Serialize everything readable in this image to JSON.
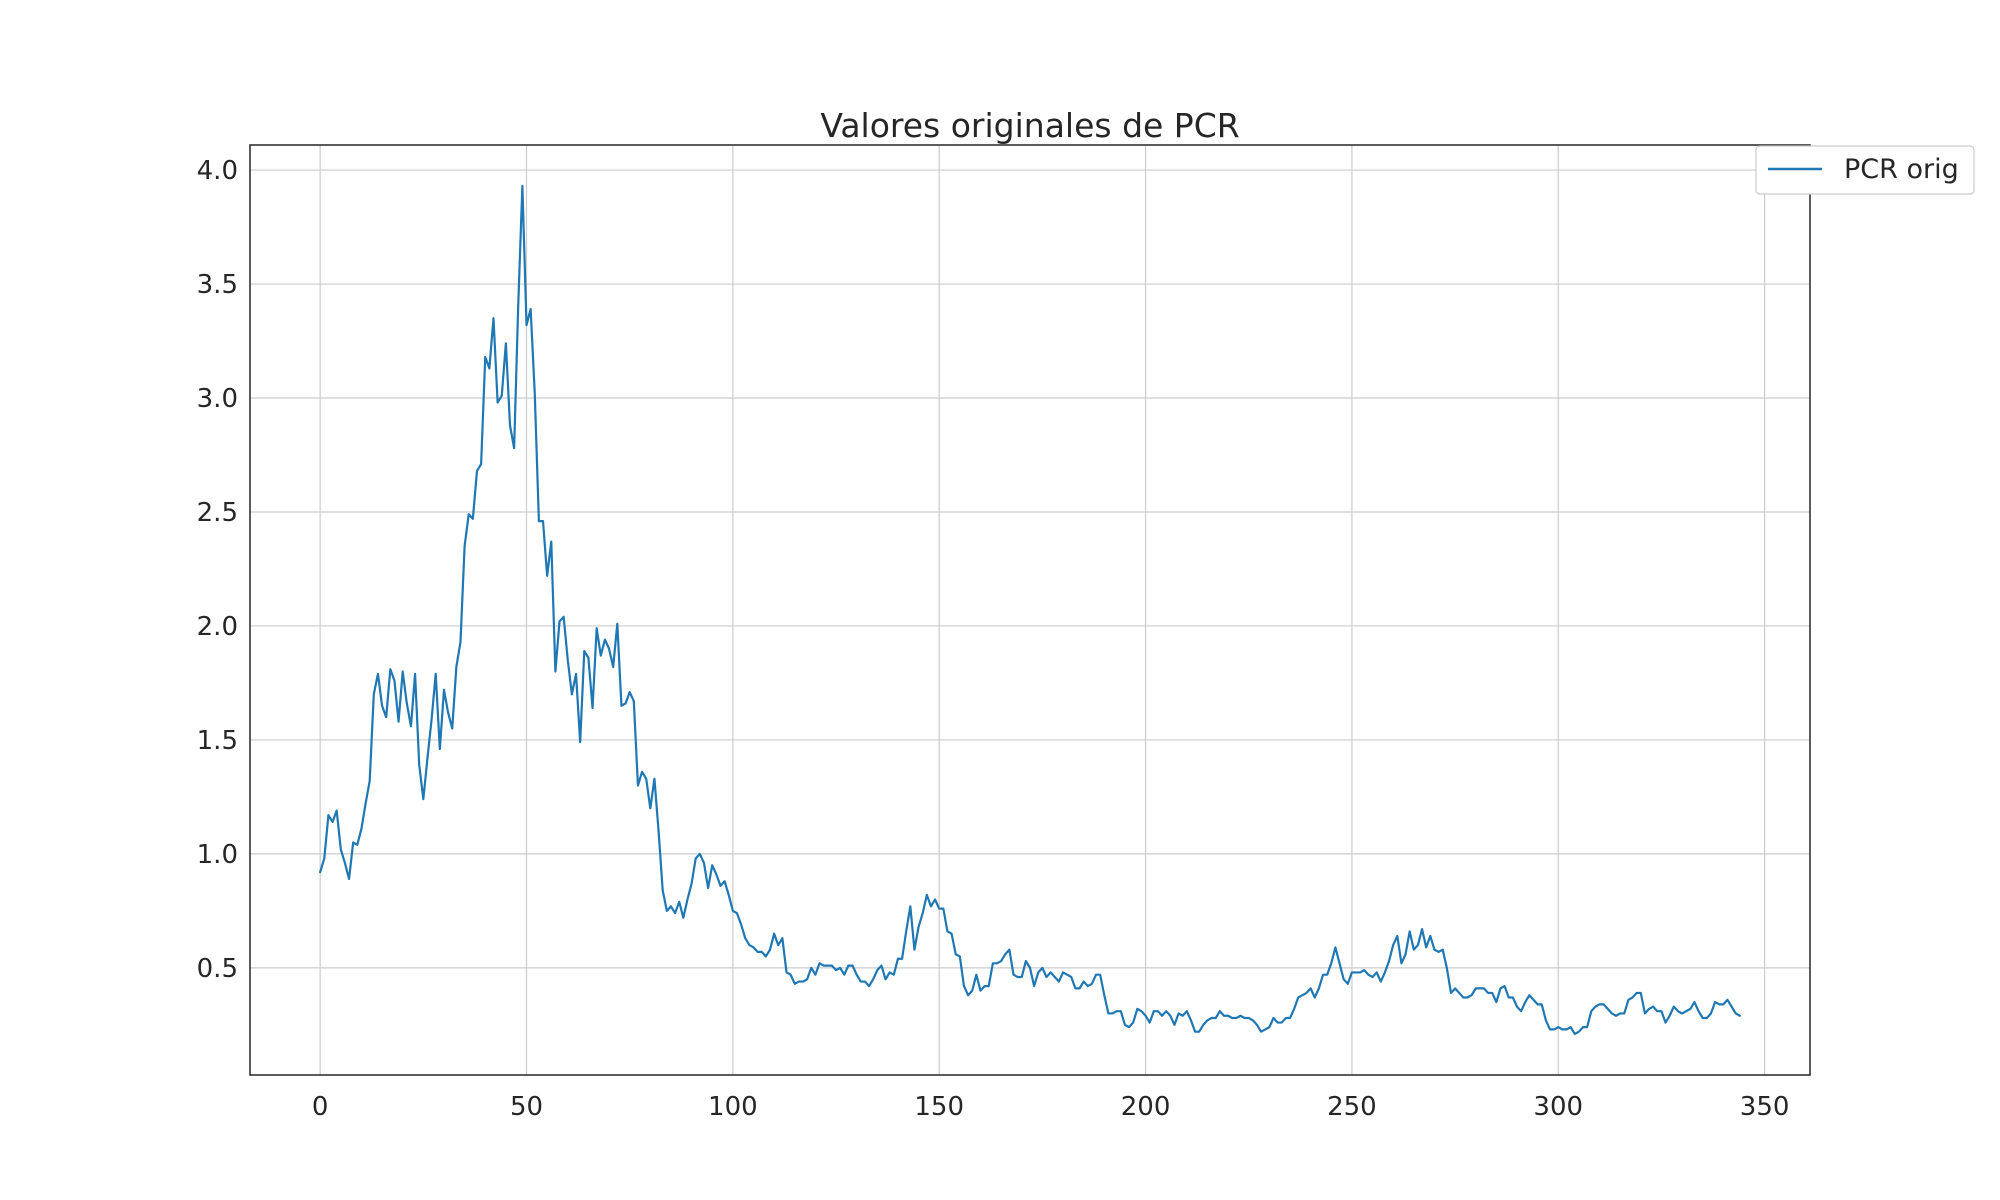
{
  "chart_data": {
    "type": "line",
    "title": "Valores originales de PCR",
    "xlabel": "",
    "ylabel": "",
    "xlim": [
      -17,
      361
    ],
    "ylim": [
      0.03,
      4.11
    ],
    "xticks": [
      0,
      50,
      100,
      150,
      200,
      250,
      300,
      350
    ],
    "yticks": [
      0.5,
      1.0,
      1.5,
      2.0,
      2.5,
      3.0,
      3.5,
      4.0
    ],
    "xtick_labels": [
      "0",
      "50",
      "100",
      "150",
      "200",
      "250",
      "300",
      "350"
    ],
    "ytick_labels": [
      "0.5",
      "1.0",
      "1.5",
      "2.0",
      "2.5",
      "3.0",
      "3.5",
      "4.0"
    ],
    "grid": true,
    "legend_position": "outside top-right",
    "colors": {
      "series": "#1f77b4",
      "grid": "#cccccc",
      "frame": "#262626"
    },
    "series": [
      {
        "name": "PCR orig",
        "x": [
          0,
          1,
          2,
          3,
          4,
          5,
          6,
          7,
          8,
          9,
          10,
          11,
          12,
          13,
          14,
          15,
          16,
          17,
          18,
          19,
          20,
          21,
          22,
          23,
          24,
          25,
          26,
          27,
          28,
          29,
          30,
          31,
          32,
          33,
          34,
          35,
          36,
          37,
          38,
          39,
          40,
          41,
          42,
          43,
          44,
          45,
          46,
          47,
          48,
          49,
          50,
          51,
          52,
          53,
          54,
          55,
          56,
          57,
          58,
          59,
          60,
          61,
          62,
          63,
          64,
          65,
          66,
          67,
          68,
          69,
          70,
          71,
          72,
          73,
          74,
          75,
          76,
          77,
          78,
          79,
          80,
          81,
          82,
          83,
          84,
          85,
          86,
          87,
          88,
          89,
          90,
          91,
          92,
          93,
          94,
          95,
          96,
          97,
          98,
          99,
          100,
          101,
          102,
          103,
          104,
          105,
          106,
          107,
          108,
          109,
          110,
          111,
          112,
          113,
          114,
          115,
          116,
          117,
          118,
          119,
          120,
          121,
          122,
          123,
          124,
          125,
          126,
          127,
          128,
          129,
          130,
          131,
          132,
          133,
          134,
          135,
          136,
          137,
          138,
          139,
          140,
          141,
          142,
          143,
          144,
          145,
          146,
          147,
          148,
          149,
          150,
          151,
          152,
          153,
          154,
          155,
          156,
          157,
          158,
          159,
          160,
          161,
          162,
          163,
          164,
          165,
          166,
          167,
          168,
          169,
          170,
          171,
          172,
          173,
          174,
          175,
          176,
          177,
          178,
          179,
          180,
          181,
          182,
          183,
          184,
          185,
          186,
          187,
          188,
          189,
          190,
          191,
          192,
          193,
          194,
          195,
          196,
          197,
          198,
          199,
          200,
          201,
          202,
          203,
          204,
          205,
          206,
          207,
          208,
          209,
          210,
          211,
          212,
          213,
          214,
          215,
          216,
          217,
          218,
          219,
          220,
          221,
          222,
          223,
          224,
          225,
          226,
          227,
          228,
          229,
          230,
          231,
          232,
          233,
          234,
          235,
          236,
          237,
          238,
          239,
          240,
          241,
          242,
          243,
          244,
          245,
          246,
          247,
          248,
          249,
          250,
          251,
          252,
          253,
          254,
          255,
          256,
          257,
          258,
          259,
          260,
          261,
          262,
          263,
          264,
          265,
          266,
          267,
          268,
          269,
          270,
          271,
          272,
          273,
          274,
          275,
          276,
          277,
          278,
          279,
          280,
          281,
          282,
          283,
          284,
          285,
          286,
          287,
          288,
          289,
          290,
          291,
          292,
          293,
          294,
          295,
          296,
          297,
          298,
          299,
          300,
          301,
          302,
          303,
          304,
          305,
          306,
          307,
          308,
          309,
          310,
          311,
          312,
          313,
          314,
          315,
          316,
          317,
          318,
          319,
          320,
          321,
          322,
          323,
          324,
          325,
          326,
          327,
          328,
          329,
          330,
          331,
          332,
          333,
          334,
          335,
          336,
          337,
          338,
          339,
          340,
          341,
          342,
          343,
          344
        ],
        "values": [
          0.92,
          0.98,
          1.17,
          1.14,
          1.19,
          1.02,
          0.96,
          0.89,
          1.05,
          1.04,
          1.11,
          1.22,
          1.32,
          1.7,
          1.79,
          1.65,
          1.6,
          1.81,
          1.76,
          1.58,
          1.8,
          1.66,
          1.56,
          1.79,
          1.39,
          1.24,
          1.42,
          1.59,
          1.79,
          1.46,
          1.72,
          1.62,
          1.55,
          1.82,
          1.93,
          2.35,
          2.49,
          2.47,
          2.68,
          2.71,
          3.18,
          3.13,
          3.35,
          2.98,
          3.01,
          3.24,
          2.88,
          2.78,
          3.41,
          3.93,
          3.32,
          3.39,
          3.02,
          2.46,
          2.46,
          2.22,
          2.37,
          1.8,
          2.02,
          2.04,
          1.85,
          1.7,
          1.79,
          1.49,
          1.89,
          1.86,
          1.64,
          1.99,
          1.87,
          1.94,
          1.9,
          1.82,
          2.01,
          1.65,
          1.66,
          1.71,
          1.67,
          1.3,
          1.36,
          1.33,
          1.2,
          1.33,
          1.1,
          0.84,
          0.75,
          0.77,
          0.74,
          0.79,
          0.72,
          0.8,
          0.87,
          0.98,
          1.0,
          0.96,
          0.85,
          0.95,
          0.91,
          0.86,
          0.88,
          0.82,
          0.75,
          0.74,
          0.69,
          0.63,
          0.6,
          0.59,
          0.57,
          0.57,
          0.55,
          0.58,
          0.65,
          0.6,
          0.63,
          0.48,
          0.47,
          0.43,
          0.44,
          0.44,
          0.45,
          0.5,
          0.47,
          0.52,
          0.51,
          0.51,
          0.51,
          0.49,
          0.5,
          0.47,
          0.51,
          0.51,
          0.47,
          0.44,
          0.44,
          0.42,
          0.45,
          0.49,
          0.51,
          0.45,
          0.48,
          0.47,
          0.54,
          0.54,
          0.66,
          0.77,
          0.58,
          0.68,
          0.74,
          0.82,
          0.77,
          0.8,
          0.76,
          0.76,
          0.66,
          0.65,
          0.56,
          0.55,
          0.42,
          0.38,
          0.4,
          0.47,
          0.4,
          0.42,
          0.42,
          0.52,
          0.52,
          0.53,
          0.56,
          0.58,
          0.47,
          0.46,
          0.46,
          0.53,
          0.5,
          0.42,
          0.48,
          0.5,
          0.46,
          0.48,
          0.46,
          0.44,
          0.48,
          0.47,
          0.46,
          0.41,
          0.41,
          0.44,
          0.42,
          0.43,
          0.47,
          0.47,
          0.38,
          0.3,
          0.3,
          0.31,
          0.31,
          0.25,
          0.24,
          0.26,
          0.32,
          0.31,
          0.29,
          0.26,
          0.31,
          0.31,
          0.29,
          0.31,
          0.29,
          0.25,
          0.3,
          0.29,
          0.31,
          0.27,
          0.22,
          0.22,
          0.25,
          0.27,
          0.28,
          0.28,
          0.31,
          0.29,
          0.29,
          0.28,
          0.28,
          0.29,
          0.28,
          0.28,
          0.27,
          0.25,
          0.22,
          0.23,
          0.24,
          0.28,
          0.26,
          0.26,
          0.28,
          0.28,
          0.32,
          0.37,
          0.38,
          0.39,
          0.41,
          0.37,
          0.41,
          0.47,
          0.47,
          0.52,
          0.59,
          0.52,
          0.45,
          0.43,
          0.48,
          0.48,
          0.48,
          0.49,
          0.47,
          0.46,
          0.48,
          0.44,
          0.48,
          0.53,
          0.6,
          0.64,
          0.52,
          0.56,
          0.66,
          0.58,
          0.6,
          0.67,
          0.59,
          0.64,
          0.58,
          0.57,
          0.58,
          0.5,
          0.39,
          0.41,
          0.39,
          0.37,
          0.37,
          0.38,
          0.41,
          0.41,
          0.41,
          0.39,
          0.39,
          0.35,
          0.41,
          0.42,
          0.37,
          0.37,
          0.33,
          0.31,
          0.35,
          0.38,
          0.36,
          0.34,
          0.34,
          0.27,
          0.23,
          0.23,
          0.24,
          0.23,
          0.23,
          0.24,
          0.21,
          0.22,
          0.24,
          0.24,
          0.31,
          0.33,
          0.34,
          0.34,
          0.32,
          0.3,
          0.29,
          0.3,
          0.3,
          0.36,
          0.37,
          0.39,
          0.39,
          0.3,
          0.32,
          0.33,
          0.31,
          0.31,
          0.26,
          0.29,
          0.33,
          0.31,
          0.3,
          0.31,
          0.32,
          0.35,
          0.31,
          0.28,
          0.28,
          0.3,
          0.35,
          0.34,
          0.34,
          0.36,
          0.33,
          0.3,
          0.29
        ]
      }
    ]
  }
}
